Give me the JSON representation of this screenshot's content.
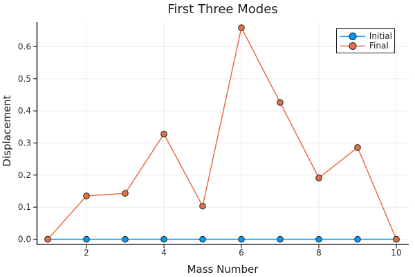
{
  "chart_data": {
    "type": "line",
    "title": "First Three Modes",
    "xlabel": "Mass Number",
    "ylabel": "Displacement",
    "x": [
      1,
      2,
      3,
      4,
      5,
      6,
      7,
      8,
      9,
      10
    ],
    "series": [
      {
        "name": "Initial",
        "color": "#009af9",
        "marker": "circle",
        "values": [
          0.0,
          0.0,
          0.0,
          0.0,
          0.0,
          0.0,
          0.0,
          0.0,
          0.0,
          0.0
        ]
      },
      {
        "name": "Final",
        "color": "#e26f46",
        "marker": "circle",
        "values": [
          0.0,
          0.135,
          0.143,
          0.328,
          0.103,
          0.659,
          0.426,
          0.191,
          0.286,
          0.0
        ]
      }
    ],
    "xticks": [
      2,
      4,
      6,
      8,
      10
    ],
    "ytick_labels": [
      "0.0",
      "0.1",
      "0.2",
      "0.3",
      "0.4",
      "0.5",
      "0.6"
    ],
    "yticks": [
      0.0,
      0.1,
      0.2,
      0.3,
      0.4,
      0.5,
      0.6
    ],
    "xlim": [
      0.73,
      10.33
    ],
    "ylim": [
      -0.03,
      0.69
    ],
    "grid": true,
    "legend_position": "top-right",
    "marker_stroke_color": "#222222",
    "axis_color": "#2a2a2a",
    "grid_color": "rgba(0,0,0,0.08)",
    "tick_label_color": "#262626"
  }
}
